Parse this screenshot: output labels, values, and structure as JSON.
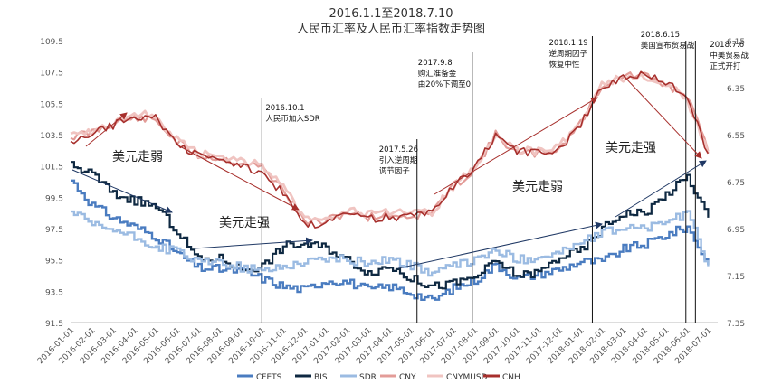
{
  "chart_data": {
    "type": "line",
    "title": "2016.1.1至2018.7.10",
    "subtitle": "人民币汇率及人民币汇率指数走势图",
    "x_tick_labels": [
      "2016-01-01",
      "2016-02-01",
      "2016-03-01",
      "2016-04-01",
      "2016-05-01",
      "2016-06-01",
      "2016-07-01",
      "2016-08-01",
      "2016-09-01",
      "2016-10-01",
      "2016-11-01",
      "2016-12-01",
      "2017-01-01",
      "2017-02-01",
      "2017-03-01",
      "2017-04-01",
      "2017-05-01",
      "2017-06-01",
      "2017-07-01",
      "2017-08-01",
      "2017-09-01",
      "2017-10-01",
      "2017-11-01",
      "2017-12-01",
      "2018-01-01",
      "2018-02-01",
      "2018-03-01",
      "2018-04-01",
      "2018-05-01",
      "2018-06-01",
      "2018-07-01"
    ],
    "left_axis": {
      "min": 91.5,
      "max": 109.5,
      "ticks": [
        "109.5",
        "107.5",
        "105.5",
        "103.5",
        "101.5",
        "99.5",
        "97.5",
        "95.5",
        "93.5",
        "91.5"
      ]
    },
    "right_axis": {
      "min": 6.15,
      "max": 7.35,
      "inverted": true,
      "ticks": [
        "6.15",
        "6.35",
        "6.55",
        "6.75",
        "6.95",
        "7.15",
        "7.35"
      ]
    },
    "index_series": [
      {
        "name": "CFETS",
        "color": "#4a7cc0",
        "axis": "left",
        "values": [
          100.6,
          99.0,
          98.2,
          97.6,
          97.0,
          95.9,
          95.0,
          94.9,
          94.8,
          94.3,
          93.8,
          93.6,
          94.2,
          94.1,
          93.6,
          93.8,
          93.4,
          92.9,
          93.7,
          94.2,
          95.2,
          94.3,
          94.6,
          94.9,
          95.4,
          95.4,
          96.2,
          96.5,
          97.1,
          97.6,
          95.2
        ]
      },
      {
        "name": "BIS",
        "color": "#0e2841",
        "axis": "left",
        "values": [
          101.5,
          101.0,
          99.7,
          99.3,
          98.9,
          97.3,
          95.5,
          95.6,
          94.9,
          95.1,
          96.4,
          96.5,
          96.3,
          95.5,
          94.7,
          95.1,
          94.3,
          93.8,
          94.0,
          94.4,
          95.4,
          94.5,
          94.7,
          95.7,
          96.1,
          97.5,
          98.5,
          98.5,
          99.7,
          100.8,
          98.2
        ]
      },
      {
        "name": "SDR",
        "color": "#9bbbe2",
        "axis": "left",
        "values": [
          98.6,
          97.7,
          97.4,
          96.9,
          96.3,
          96.1,
          95.3,
          95.4,
          95.0,
          94.8,
          95.1,
          95.4,
          95.6,
          95.5,
          95.3,
          95.6,
          95.1,
          94.7,
          95.1,
          95.5,
          96.1,
          95.5,
          95.7,
          96.0,
          96.6,
          97.2,
          97.6,
          97.5,
          98.0,
          98.4,
          95.1
        ]
      }
    ],
    "rate_series": [
      {
        "name": "CNY",
        "color": "#e39c98",
        "axis": "right",
        "values": [
          6.56,
          6.54,
          6.5,
          6.48,
          6.49,
          6.58,
          6.64,
          6.65,
          6.67,
          6.69,
          6.78,
          6.92,
          6.92,
          6.88,
          6.9,
          6.89,
          6.9,
          6.88,
          6.77,
          6.7,
          6.55,
          6.63,
          6.63,
          6.61,
          6.5,
          6.34,
          6.3,
          6.3,
          6.34,
          6.38,
          6.62
        ]
      },
      {
        "name": "CNYMUSD",
        "color": "#f0c4c1",
        "axis": "right",
        "values": [
          6.53,
          6.54,
          6.5,
          6.46,
          6.47,
          6.57,
          6.63,
          6.64,
          6.66,
          6.68,
          6.77,
          6.91,
          6.9,
          6.87,
          6.89,
          6.88,
          6.89,
          6.88,
          6.77,
          6.69,
          6.55,
          6.62,
          6.62,
          6.6,
          6.5,
          6.33,
          6.31,
          6.3,
          6.34,
          6.4,
          6.63
        ]
      },
      {
        "name": "CNH",
        "color": "#a72f2c",
        "axis": "right",
        "values": [
          6.59,
          6.55,
          6.51,
          6.47,
          6.48,
          6.59,
          6.64,
          6.66,
          6.68,
          6.71,
          6.8,
          6.94,
          6.92,
          6.87,
          6.91,
          6.9,
          6.9,
          6.88,
          6.77,
          6.7,
          6.55,
          6.62,
          6.63,
          6.61,
          6.51,
          6.34,
          6.31,
          6.29,
          6.33,
          6.38,
          6.63
        ]
      }
    ],
    "event_lines": [
      {
        "month": 9.0,
        "text": [
          "2016.10.1",
          "人民币加入SDR"
        ]
      },
      {
        "month": 16.3,
        "text": [
          "2017.5.26",
          "引入逆周期",
          "调节因子"
        ]
      },
      {
        "month": 18.9,
        "text": [
          "2017.9.8",
          "购汇准备金",
          "由20%下调至0"
        ]
      },
      {
        "month": 24.55,
        "text": [
          "2018.1.19",
          "逆周期因子",
          "恢复中性"
        ]
      },
      {
        "month": 28.95,
        "text": [
          "2018.6.15",
          "美国宣布贸易战"
        ]
      },
      {
        "month": 29.4,
        "text": [
          "2018.7.6",
          "中美贸易战",
          "正式开打"
        ]
      }
    ],
    "annotations": [
      "美元走弱",
      "美元走强",
      "美元走弱",
      "美元走强"
    ],
    "legend": [
      "CFETS",
      "BIS",
      "SDR",
      "CNY",
      "CNYMUSD",
      "CNH"
    ],
    "legend_position": "bottom"
  }
}
